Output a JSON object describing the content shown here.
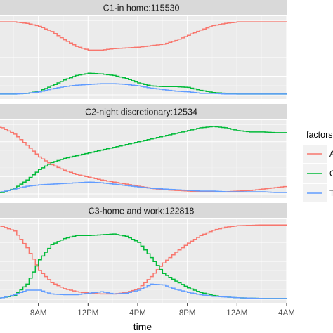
{
  "chart_data": {
    "type": "line",
    "xlabel": "time",
    "x_ticks": [
      "4AM",
      "8AM",
      "12PM",
      "4PM",
      "8PM",
      "12AM",
      "4AM"
    ],
    "x_hours": [
      4,
      8,
      12,
      16,
      20,
      24,
      28
    ],
    "xlim": [
      4,
      28
    ],
    "ylim": [
      0,
      1
    ],
    "legend": {
      "title": "factors",
      "position": "right",
      "entries": [
        {
          "label": "A",
          "color": "#F8766D"
        },
        {
          "label": "C",
          "color": "#00BA38"
        },
        {
          "label": "Ti",
          "color": "#619CFF"
        }
      ]
    },
    "facets": [
      {
        "title": "C1-in home:115530",
        "series": [
          {
            "name": "A",
            "color": "#F8766D",
            "x": [
              4,
              6,
              7,
              8,
              9,
              10,
              11,
              12,
              13,
              14,
              15,
              16,
              17,
              18,
              19,
              20,
              21,
              22,
              23,
              24,
              26,
              28
            ],
            "y": [
              0.98,
              0.98,
              0.96,
              0.92,
              0.85,
              0.74,
              0.65,
              0.6,
              0.6,
              0.62,
              0.63,
              0.64,
              0.66,
              0.68,
              0.73,
              0.8,
              0.87,
              0.93,
              0.96,
              0.98,
              0.98,
              0.98
            ]
          },
          {
            "name": "C",
            "color": "#00BA38",
            "x": [
              4,
              6,
              7,
              8,
              9,
              10,
              11,
              12,
              13,
              14,
              15,
              16,
              17,
              18,
              19,
              20,
              21,
              22,
              23,
              24,
              26,
              28
            ],
            "y": [
              0.01,
              0.01,
              0.02,
              0.05,
              0.12,
              0.2,
              0.26,
              0.29,
              0.28,
              0.26,
              0.22,
              0.16,
              0.12,
              0.11,
              0.11,
              0.1,
              0.06,
              0.03,
              0.02,
              0.01,
              0.01,
              0.01
            ]
          },
          {
            "name": "Ti",
            "color": "#619CFF",
            "x": [
              4,
              6,
              7,
              8,
              9,
              10,
              11,
              12,
              13,
              14,
              15,
              16,
              17,
              18,
              19,
              20,
              21,
              22,
              23,
              24,
              26,
              28
            ],
            "y": [
              0.01,
              0.01,
              0.02,
              0.04,
              0.08,
              0.11,
              0.13,
              0.14,
              0.15,
              0.15,
              0.14,
              0.12,
              0.09,
              0.07,
              0.05,
              0.04,
              0.02,
              0.02,
              0.01,
              0.01,
              0.01,
              0.01
            ]
          }
        ]
      },
      {
        "title": "C2-night discretionary:12534",
        "series": [
          {
            "name": "A",
            "color": "#F8766D",
            "x": [
              4,
              5,
              6,
              7,
              8,
              9,
              10,
              11,
              12,
              13,
              14,
              15,
              16,
              17,
              18,
              19,
              20,
              21,
              22,
              23,
              24,
              25,
              26,
              27,
              28
            ],
            "y": [
              0.98,
              0.95,
              0.86,
              0.7,
              0.53,
              0.42,
              0.34,
              0.28,
              0.24,
              0.2,
              0.17,
              0.14,
              0.11,
              0.08,
              0.06,
              0.05,
              0.04,
              0.03,
              0.03,
              0.03,
              0.04,
              0.05,
              0.07,
              0.09,
              0.11
            ]
          },
          {
            "name": "C",
            "color": "#00BA38",
            "x": [
              4,
              5,
              6,
              7,
              8,
              9,
              10,
              11,
              12,
              13,
              14,
              15,
              16,
              17,
              18,
              19,
              20,
              21,
              22,
              23,
              24,
              25,
              26,
              27,
              28
            ],
            "y": [
              0.01,
              0.02,
              0.08,
              0.2,
              0.35,
              0.45,
              0.51,
              0.55,
              0.59,
              0.63,
              0.67,
              0.71,
              0.75,
              0.79,
              0.83,
              0.87,
              0.91,
              0.95,
              0.97,
              0.95,
              0.91,
              0.89,
              0.89,
              0.88,
              0.88
            ]
          },
          {
            "name": "Ti",
            "color": "#619CFF",
            "x": [
              4,
              5,
              6,
              7,
              8,
              9,
              10,
              11,
              12,
              13,
              14,
              15,
              16,
              17,
              18,
              19,
              20,
              21,
              22,
              23,
              24,
              25,
              26,
              27,
              28
            ],
            "y": [
              0.01,
              0.03,
              0.07,
              0.11,
              0.13,
              0.14,
              0.15,
              0.16,
              0.17,
              0.16,
              0.14,
              0.12,
              0.1,
              0.08,
              0.07,
              0.06,
              0.05,
              0.04,
              0.04,
              0.03,
              0.03,
              0.03,
              0.03,
              0.02,
              0.02
            ]
          }
        ]
      },
      {
        "title": "C3-home and work:122818",
        "series": [
          {
            "name": "A",
            "color": "#F8766D",
            "x": [
              4,
              5,
              6,
              7,
              8,
              9,
              10,
              11,
              12,
              13,
              14,
              15,
              16,
              17,
              18,
              19,
              20,
              21,
              22,
              23,
              24,
              26,
              28
            ],
            "y": [
              0.98,
              0.96,
              0.9,
              0.68,
              0.38,
              0.22,
              0.14,
              0.1,
              0.08,
              0.07,
              0.07,
              0.09,
              0.14,
              0.3,
              0.48,
              0.62,
              0.74,
              0.84,
              0.91,
              0.95,
              0.97,
              0.98,
              0.98
            ]
          },
          {
            "name": "C",
            "color": "#00BA38",
            "x": [
              4,
              5,
              6,
              7,
              8,
              9,
              10,
              11,
              12,
              13,
              14,
              15,
              16,
              17,
              18,
              19,
              20,
              21,
              22,
              23,
              24,
              26,
              28
            ],
            "y": [
              0.01,
              0.02,
              0.05,
              0.2,
              0.52,
              0.72,
              0.8,
              0.84,
              0.84,
              0.85,
              0.86,
              0.83,
              0.75,
              0.55,
              0.34,
              0.24,
              0.15,
              0.09,
              0.05,
              0.03,
              0.02,
              0.01,
              0.01
            ]
          },
          {
            "name": "Ti",
            "color": "#619CFF",
            "x": [
              4,
              5,
              6,
              7,
              8,
              9,
              10,
              11,
              12,
              13,
              14,
              15,
              16,
              17,
              18,
              19,
              20,
              21,
              22,
              23,
              24,
              26,
              28
            ],
            "y": [
              0.01,
              0.02,
              0.06,
              0.12,
              0.12,
              0.07,
              0.06,
              0.06,
              0.08,
              0.1,
              0.07,
              0.08,
              0.12,
              0.2,
              0.19,
              0.13,
              0.09,
              0.06,
              0.04,
              0.03,
              0.02,
              0.01,
              0.01
            ]
          }
        ]
      }
    ]
  }
}
